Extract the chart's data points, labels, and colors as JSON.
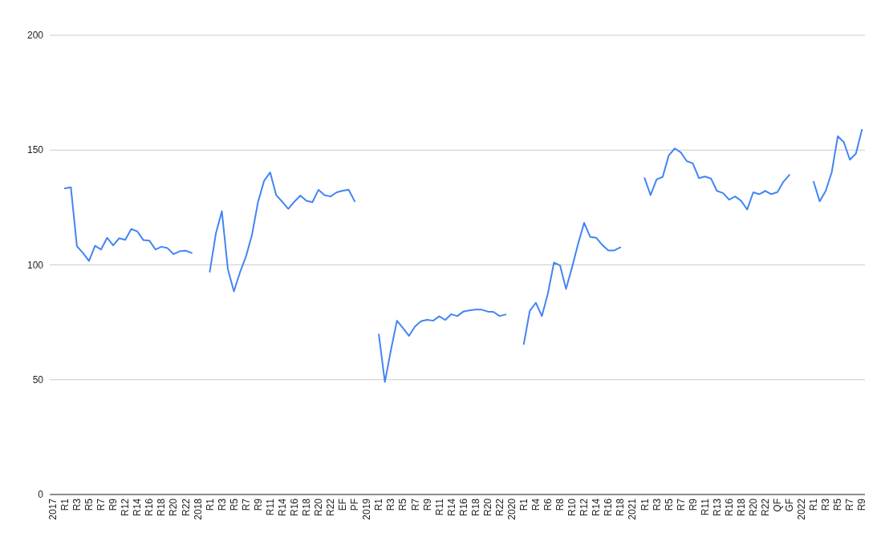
{
  "chart_data": {
    "type": "line",
    "categories": [
      "2017",
      null,
      "R1",
      null,
      "R3",
      null,
      "R5",
      null,
      "R7",
      null,
      "R9",
      null,
      "R12",
      null,
      "R14",
      null,
      "R16",
      null,
      "R18",
      null,
      "R20",
      null,
      "R22",
      null,
      "2018",
      null,
      "R1",
      null,
      "R3",
      null,
      "R5",
      null,
      "R7",
      null,
      "R9",
      null,
      "R11",
      null,
      "R14",
      null,
      "R16",
      null,
      "R18",
      null,
      "R20",
      null,
      "R22",
      null,
      "EF",
      null,
      "PF",
      null,
      "2019",
      null,
      "R1",
      null,
      "R3",
      null,
      "R5",
      null,
      "R7",
      null,
      "R9",
      null,
      "R11",
      null,
      "R14",
      null,
      "R16",
      null,
      "R18",
      null,
      "R20",
      null,
      "R22",
      null,
      "2020",
      null,
      "R1",
      null,
      "R4",
      null,
      "R6",
      null,
      "R8",
      null,
      "R10",
      null,
      "R12",
      null,
      "R14",
      null,
      "R16",
      null,
      "R18",
      null,
      "2021",
      null,
      "R1",
      null,
      "R3",
      null,
      "R5",
      null,
      "R7",
      null,
      "R9",
      null,
      "R11",
      null,
      "R13",
      null,
      "R16",
      null,
      "R18",
      null,
      "R20",
      null,
      "R22",
      null,
      "QF",
      null,
      "GF",
      null,
      "2022",
      null,
      "R1",
      null,
      "R3",
      null,
      "R5",
      null,
      "R7",
      null,
      "R9"
    ],
    "series": [
      {
        "color": "#4285f4",
        "values": [
          null,
          null,
          133.3,
          133.8,
          108.1,
          105.2,
          101.7,
          108.3,
          106.7,
          111.8,
          108.5,
          111.6,
          110.9,
          115.6,
          114.6,
          110.8,
          110.6,
          106.7,
          107.9,
          107.3,
          104.7,
          105.9,
          106.2,
          105.2,
          null,
          null,
          97.0,
          113.5,
          123.4,
          98.1,
          88.5,
          96.7,
          103.7,
          113.2,
          127.5,
          136.6,
          140.3,
          130.4,
          127.5,
          124.4,
          127.5,
          130.2,
          127.9,
          127.3,
          132.7,
          130.4,
          129.8,
          131.6,
          132.3,
          132.7,
          127.7,
          null,
          null,
          null,
          69.7,
          49.0,
          62.9,
          75.7,
          72.5,
          69.1,
          73.2,
          75.5,
          76.1,
          75.7,
          77.6,
          76.0,
          78.5,
          77.7,
          79.7,
          80.2,
          80.5,
          80.5,
          79.7,
          79.5,
          77.7,
          78.4,
          null,
          null,
          65.5,
          80.0,
          83.5,
          77.7,
          87.6,
          101.0,
          99.8,
          89.5,
          99.0,
          109.2,
          118.3,
          112.2,
          111.8,
          108.7,
          106.3,
          106.3,
          107.6,
          null,
          null,
          null,
          137.8,
          130.4,
          137.2,
          138.3,
          147.6,
          150.7,
          149.0,
          145.2,
          144.2,
          137.8,
          138.5,
          137.6,
          132.2,
          131.3,
          128.4,
          129.8,
          127.9,
          124.1,
          131.6,
          130.8,
          132.2,
          130.8,
          131.7,
          136.2,
          139.2,
          null,
          null,
          null,
          136.2,
          127.7,
          132.2,
          140.3,
          156.0,
          153.5,
          145.8,
          148.4,
          158.8
        ]
      }
    ],
    "ylim": [
      0,
      200
    ],
    "yticks": [
      0,
      50,
      100,
      150,
      200
    ],
    "grid": "y"
  }
}
